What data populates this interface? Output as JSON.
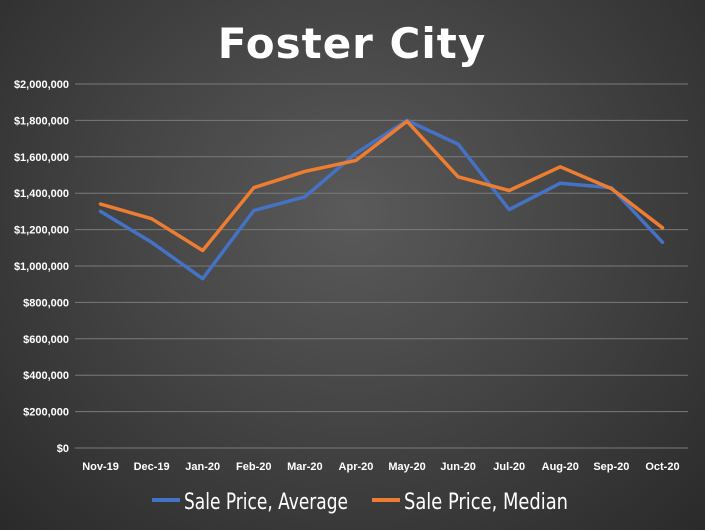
{
  "chart_data": {
    "type": "line",
    "title": "Foster City",
    "xlabel": "",
    "ylabel": "",
    "categories": [
      "Nov-19",
      "Dec-19",
      "Jan-20",
      "Feb-20",
      "Mar-20",
      "Apr-20",
      "May-20",
      "Jun-20",
      "Jul-20",
      "Aug-20",
      "Sep-20",
      "Oct-20"
    ],
    "ylim": [
      0,
      2000000
    ],
    "yticks": [
      0,
      200000,
      400000,
      600000,
      800000,
      1000000,
      1200000,
      1400000,
      1600000,
      1800000,
      2000000
    ],
    "ytick_labels": [
      "$0",
      "$200,000",
      "$400,000",
      "$600,000",
      "$800,000",
      "$1,000,000",
      "$1,200,000",
      "$1,400,000",
      "$1,600,000",
      "$1,800,000",
      "$2,000,000"
    ],
    "grid": true,
    "legend_position": "bottom",
    "series": [
      {
        "name": "Sale Price, Average",
        "color": "#4472C4",
        "values": [
          1300000,
          1130000,
          930000,
          1305000,
          1380000,
          1620000,
          1800000,
          1670000,
          1310000,
          1455000,
          1430000,
          1130000
        ]
      },
      {
        "name": "Sale Price, Median",
        "color": "#ED7D31",
        "values": [
          1340000,
          1260000,
          1085000,
          1430000,
          1520000,
          1580000,
          1795000,
          1490000,
          1415000,
          1545000,
          1425000,
          1210000
        ]
      }
    ]
  }
}
